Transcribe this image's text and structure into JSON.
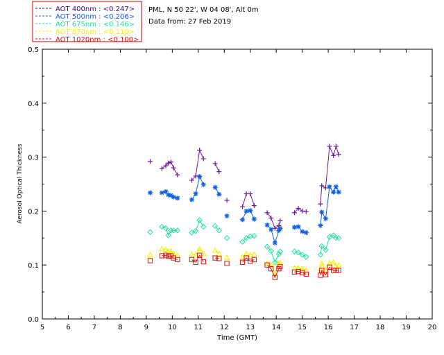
{
  "header": {
    "station": "PML, N 50 22', W 04 08', Alt 0m",
    "date_line": "Data from: 27 Feb 2019"
  },
  "legend": [
    {
      "label": "AOT  400nm : <0.247>",
      "color": "#3a0a8a"
    },
    {
      "label": "AOT  500nm : <0.206>",
      "color": "#1060e0"
    },
    {
      "label": "AOT  675nm : <0.146>",
      "color": "#20e0a0"
    },
    {
      "label": "AOT  870nm : <0.110>",
      "color": "#f0f000"
    },
    {
      "label": "AOT 1020nm : <0.100>",
      "color": "#e01010"
    }
  ],
  "chart_data": {
    "type": "line",
    "xlabel": "Time (GMT)",
    "ylabel": "Aerosol Optical Thickness",
    "xlim": [
      5,
      20
    ],
    "ylim": [
      0,
      0.5
    ],
    "xticks": [
      "5",
      "6",
      "7",
      "8",
      "9",
      "10",
      "11",
      "12",
      "13",
      "14",
      "15",
      "16",
      "17",
      "18",
      "19",
      "20"
    ],
    "yticks": [
      "0.0",
      "0.1",
      "0.2",
      "0.3",
      "0.4",
      "0.5"
    ],
    "series": [
      {
        "name": "AOT  400nm",
        "color": "#6a1a9a",
        "marker": "plus",
        "segments": [
          [
            [
              9.15,
              0.292
            ]
          ],
          [
            [
              9.6,
              0.279
            ],
            [
              9.75,
              0.284
            ],
            [
              9.85,
              0.289
            ],
            [
              9.95,
              0.291
            ],
            [
              10.05,
              0.28
            ],
            [
              10.2,
              0.267
            ]
          ],
          [
            [
              10.75,
              0.257
            ],
            [
              10.9,
              0.265
            ],
            [
              11.05,
              0.313
            ],
            [
              11.2,
              0.297
            ]
          ],
          [
            [
              11.65,
              0.288
            ],
            [
              11.8,
              0.273
            ]
          ],
          [
            [
              12.1,
              0.22
            ]
          ],
          [
            [
              12.7,
              0.208
            ],
            [
              12.85,
              0.232
            ],
            [
              13.0,
              0.232
            ],
            [
              13.15,
              0.21
            ]
          ],
          [
            [
              13.65,
              0.197
            ],
            [
              13.8,
              0.187
            ],
            [
              13.95,
              0.168
            ],
            [
              14.1,
              0.173
            ],
            [
              14.15,
              0.182
            ]
          ],
          [
            [
              14.7,
              0.197
            ],
            [
              14.85,
              0.205
            ],
            [
              15.0,
              0.2
            ],
            [
              15.15,
              0.199
            ]
          ],
          [
            [
              15.7,
              0.213
            ],
            [
              15.75,
              0.247
            ],
            [
              15.9,
              0.243
            ],
            [
              16.05,
              0.32
            ],
            [
              16.2,
              0.303
            ],
            [
              16.3,
              0.32
            ],
            [
              16.4,
              0.305
            ]
          ]
        ]
      },
      {
        "name": "AOT  500nm",
        "color": "#1060e0",
        "marker": "star",
        "segments": [
          [
            [
              9.15,
              0.234
            ]
          ],
          [
            [
              9.6,
              0.234
            ],
            [
              9.75,
              0.236
            ],
            [
              9.85,
              0.23
            ],
            [
              9.95,
              0.229
            ],
            [
              10.05,
              0.226
            ],
            [
              10.2,
              0.224
            ]
          ],
          [
            [
              10.75,
              0.221
            ],
            [
              10.9,
              0.232
            ],
            [
              11.05,
              0.264
            ],
            [
              11.2,
              0.249
            ]
          ],
          [
            [
              11.65,
              0.244
            ],
            [
              11.8,
              0.231
            ]
          ],
          [
            [
              12.1,
              0.191
            ]
          ],
          [
            [
              12.7,
              0.184
            ],
            [
              12.85,
              0.2
            ],
            [
              13.0,
              0.201
            ],
            [
              13.15,
              0.185
            ]
          ],
          [
            [
              13.65,
              0.174
            ],
            [
              13.8,
              0.166
            ],
            [
              13.95,
              0.141
            ],
            [
              14.1,
              0.164
            ],
            [
              14.15,
              0.168
            ]
          ],
          [
            [
              14.7,
              0.17
            ],
            [
              14.85,
              0.171
            ],
            [
              15.0,
              0.162
            ],
            [
              15.15,
              0.16
            ]
          ],
          [
            [
              15.7,
              0.173
            ],
            [
              15.75,
              0.198
            ],
            [
              15.9,
              0.186
            ],
            [
              16.05,
              0.245
            ],
            [
              16.2,
              0.235
            ],
            [
              16.3,
              0.245
            ],
            [
              16.4,
              0.235
            ]
          ]
        ]
      },
      {
        "name": "AOT  675nm",
        "color": "#20e0a0",
        "marker": "diamond",
        "segments": [
          [
            [
              9.15,
              0.161
            ]
          ],
          [
            [
              9.6,
              0.171
            ],
            [
              9.75,
              0.168
            ],
            [
              9.85,
              0.155
            ],
            [
              9.95,
              0.164
            ],
            [
              10.05,
              0.164
            ],
            [
              10.2,
              0.164
            ]
          ],
          [
            [
              10.75,
              0.16
            ],
            [
              10.9,
              0.163
            ],
            [
              11.05,
              0.183
            ],
            [
              11.2,
              0.171
            ]
          ],
          [
            [
              11.65,
              0.172
            ],
            [
              11.8,
              0.164
            ]
          ],
          [
            [
              12.1,
              0.15
            ]
          ],
          [
            [
              12.7,
              0.143
            ],
            [
              12.85,
              0.15
            ],
            [
              13.0,
              0.153
            ],
            [
              13.15,
              0.154
            ]
          ],
          [
            [
              13.65,
              0.134
            ],
            [
              13.8,
              0.126
            ],
            [
              13.95,
              0.105
            ],
            [
              14.1,
              0.12
            ],
            [
              14.15,
              0.125
            ]
          ],
          [
            [
              14.7,
              0.125
            ],
            [
              14.85,
              0.123
            ],
            [
              15.0,
              0.119
            ],
            [
              15.15,
              0.115
            ]
          ],
          [
            [
              15.7,
              0.119
            ],
            [
              15.75,
              0.135
            ],
            [
              15.9,
              0.128
            ],
            [
              16.05,
              0.152
            ],
            [
              16.2,
              0.155
            ],
            [
              16.3,
              0.15
            ],
            [
              16.4,
              0.15
            ]
          ]
        ]
      },
      {
        "name": "AOT  870nm",
        "color": "#f0f000",
        "marker": "triangle",
        "segments": [
          [
            [
              9.15,
              0.119
            ]
          ],
          [
            [
              9.6,
              0.13
            ],
            [
              9.75,
              0.129
            ],
            [
              9.85,
              0.125
            ],
            [
              9.95,
              0.126
            ],
            [
              10.05,
              0.121
            ],
            [
              10.2,
              0.118
            ]
          ],
          [
            [
              10.75,
              0.12
            ],
            [
              10.9,
              0.118
            ],
            [
              11.05,
              0.13
            ],
            [
              11.2,
              0.121
            ]
          ],
          [
            [
              11.65,
              0.127
            ],
            [
              11.8,
              0.121
            ]
          ],
          [
            [
              12.1,
              0.114
            ]
          ],
          [
            [
              12.7,
              0.115
            ],
            [
              12.85,
              0.121
            ],
            [
              13.0,
              0.119
            ],
            [
              13.15,
              0.12
            ]
          ],
          [
            [
              13.65,
              0.103
            ],
            [
              13.8,
              0.1
            ],
            [
              13.95,
              0.084
            ],
            [
              14.1,
              0.103
            ],
            [
              14.15,
              0.104
            ]
          ],
          [
            [
              14.7,
              0.094
            ],
            [
              14.85,
              0.094
            ],
            [
              15.0,
              0.093
            ],
            [
              15.15,
              0.09
            ]
          ],
          [
            [
              15.7,
              0.093
            ],
            [
              15.75,
              0.103
            ],
            [
              15.9,
              0.091
            ],
            [
              16.05,
              0.104
            ],
            [
              16.2,
              0.105
            ],
            [
              16.3,
              0.098
            ],
            [
              16.4,
              0.1
            ]
          ]
        ]
      },
      {
        "name": "AOT 1020nm",
        "color": "#e01010",
        "marker": "square",
        "segments": [
          [
            [
              9.15,
              0.108
            ]
          ],
          [
            [
              9.6,
              0.117
            ],
            [
              9.75,
              0.118
            ],
            [
              9.85,
              0.116
            ],
            [
              9.95,
              0.117
            ],
            [
              10.05,
              0.113
            ],
            [
              10.2,
              0.11
            ]
          ],
          [
            [
              10.75,
              0.11
            ],
            [
              10.9,
              0.105
            ],
            [
              11.05,
              0.118
            ],
            [
              11.2,
              0.106
            ]
          ],
          [
            [
              11.65,
              0.113
            ],
            [
              11.8,
              0.112
            ]
          ],
          [
            [
              12.1,
              0.103
            ]
          ],
          [
            [
              12.7,
              0.105
            ],
            [
              12.85,
              0.113
            ],
            [
              13.0,
              0.107
            ],
            [
              13.15,
              0.11
            ]
          ],
          [
            [
              13.65,
              0.1
            ],
            [
              13.8,
              0.093
            ],
            [
              13.95,
              0.077
            ],
            [
              14.1,
              0.093
            ],
            [
              14.15,
              0.097
            ]
          ],
          [
            [
              14.7,
              0.087
            ],
            [
              14.85,
              0.088
            ],
            [
              15.0,
              0.086
            ],
            [
              15.15,
              0.083
            ]
          ],
          [
            [
              15.7,
              0.081
            ],
            [
              15.75,
              0.09
            ],
            [
              15.9,
              0.082
            ],
            [
              16.05,
              0.096
            ],
            [
              16.2,
              0.09
            ],
            [
              16.3,
              0.09
            ],
            [
              16.4,
              0.09
            ]
          ]
        ]
      }
    ]
  }
}
